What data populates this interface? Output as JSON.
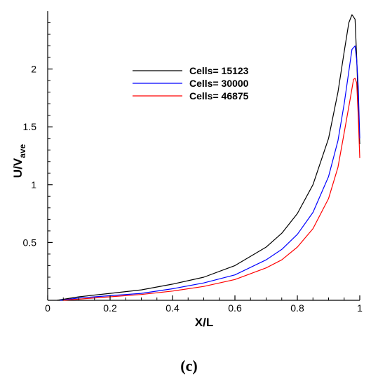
{
  "caption": "(c)",
  "chart_data": {
    "type": "line",
    "xlabel": "X/L",
    "ylabel": {
      "main": "U/V",
      "sub": "ave"
    },
    "xlim": [
      0,
      1
    ],
    "ylim": [
      0,
      2.5
    ],
    "xticks": [
      "0",
      "0.2",
      "0.4",
      "0.6",
      "0.8",
      "1"
    ],
    "yticks": [
      "0.5",
      "1",
      "1.5",
      "2"
    ],
    "legend_position": "upper-center",
    "grid": false,
    "series": [
      {
        "name": "Cells= 15123",
        "color": "#000000",
        "x": [
          0.03,
          0.1,
          0.2,
          0.3,
          0.4,
          0.5,
          0.6,
          0.7,
          0.75,
          0.8,
          0.85,
          0.9,
          0.93,
          0.95,
          0.965,
          0.975,
          0.985,
          0.99,
          0.995,
          1.0
        ],
        "y": [
          0.0,
          0.03,
          0.06,
          0.09,
          0.14,
          0.2,
          0.3,
          0.46,
          0.58,
          0.75,
          1.0,
          1.4,
          1.8,
          2.15,
          2.4,
          2.47,
          2.43,
          2.1,
          1.7,
          1.35
        ]
      },
      {
        "name": "Cells= 30000",
        "color": "#0000ff",
        "x": [
          0.04,
          0.1,
          0.2,
          0.3,
          0.4,
          0.5,
          0.6,
          0.7,
          0.75,
          0.8,
          0.85,
          0.9,
          0.93,
          0.95,
          0.965,
          0.975,
          0.985,
          0.99,
          0.995,
          1.0
        ],
        "y": [
          0.0,
          0.02,
          0.04,
          0.06,
          0.1,
          0.15,
          0.22,
          0.35,
          0.44,
          0.57,
          0.76,
          1.07,
          1.38,
          1.7,
          1.98,
          2.17,
          2.2,
          2.08,
          1.85,
          1.4
        ]
      },
      {
        "name": "Cells= 46875",
        "color": "#ff0000",
        "x": [
          0.05,
          0.1,
          0.2,
          0.3,
          0.4,
          0.5,
          0.6,
          0.7,
          0.75,
          0.8,
          0.85,
          0.9,
          0.93,
          0.95,
          0.97,
          0.98,
          0.985,
          0.99,
          0.995,
          1.0
        ],
        "y": [
          0.0,
          0.01,
          0.03,
          0.05,
          0.08,
          0.12,
          0.18,
          0.28,
          0.35,
          0.46,
          0.62,
          0.88,
          1.15,
          1.45,
          1.75,
          1.91,
          1.92,
          1.88,
          1.6,
          1.23
        ]
      }
    ]
  }
}
